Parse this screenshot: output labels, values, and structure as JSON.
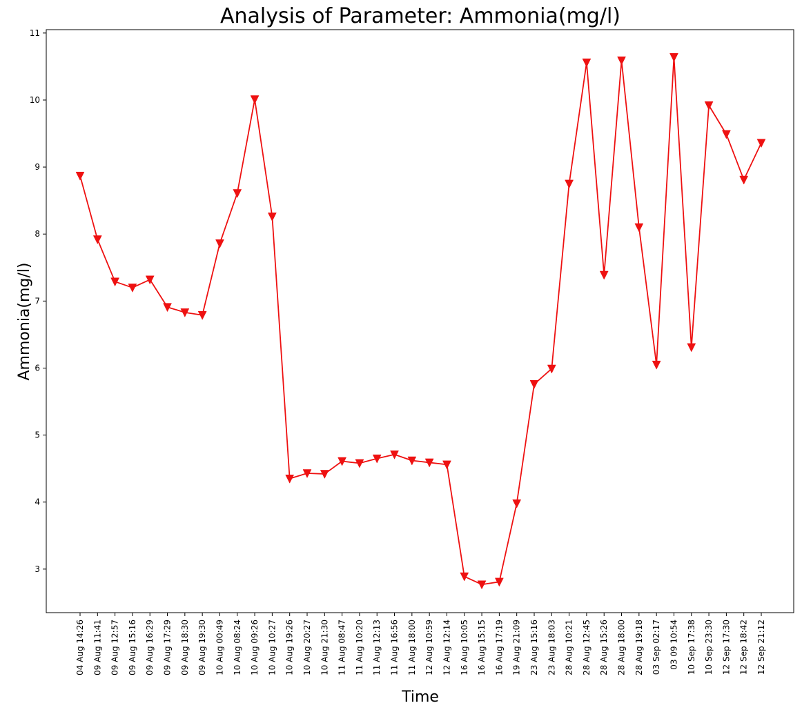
{
  "chart_data": {
    "type": "line",
    "title": "Analysis of Parameter: Ammonia(mg/l)",
    "xlabel": "Time",
    "ylabel": "Ammonia(mg/l)",
    "ylim": [
      2.35,
      11.05
    ],
    "yticks": [
      3,
      4,
      5,
      6,
      7,
      8,
      9,
      10,
      11
    ],
    "grid": false,
    "line_color": "#ee1111",
    "marker": "triangle-down",
    "categories": [
      "04 Aug 14:26",
      "09 Aug 11:41",
      "09 Aug 12:57",
      "09 Aug 15:16",
      "09 Aug 16:29",
      "09 Aug 17:29",
      "09 Aug 18:30",
      "09 Aug 19:30",
      "10 Aug 00:49",
      "10 Aug 08:24",
      "10 Aug 09:26",
      "10 Aug 10:27",
      "10 Aug 19:26",
      "10 Aug 20:27",
      "10 Aug 21:30",
      "11 Aug 08:47",
      "11 Aug 10:20",
      "11 Aug 12:13",
      "11 Aug 16:56",
      "11 Aug 18:00",
      "12 Aug 10:59",
      "12 Aug 12:14",
      "16 Aug 10:05",
      "16 Aug 15:15",
      "16 Aug 17:19",
      "19 Aug 21:09",
      "23 Aug 15:16",
      "23 Aug 18:03",
      "28 Aug 10:21",
      "28 Aug 12:45",
      "28 Aug 15:26",
      "28 Aug 18:00",
      "28 Aug 19:18",
      "03 Sep 02:17",
      "03 09 10:54",
      "10 Sep 17:38",
      "10 Sep 23:30",
      "12 Sep 17:30",
      "12 Sep 18:42",
      "12 Sep 21:12"
    ],
    "series": [
      {
        "values": [
          8.87,
          7.92,
          7.29,
          7.2,
          7.32,
          6.91,
          6.83,
          6.79,
          7.86,
          8.61,
          10.01,
          8.26,
          4.35,
          4.43,
          4.42,
          4.61,
          4.58,
          4.65,
          4.71,
          4.62,
          4.59,
          4.56,
          2.89,
          2.77,
          2.81,
          3.98,
          5.76,
          5.99,
          8.75,
          10.56,
          7.39,
          10.59,
          8.1,
          6.05,
          10.64,
          6.31,
          9.92,
          9.49,
          8.81,
          9.36
        ]
      }
    ]
  }
}
